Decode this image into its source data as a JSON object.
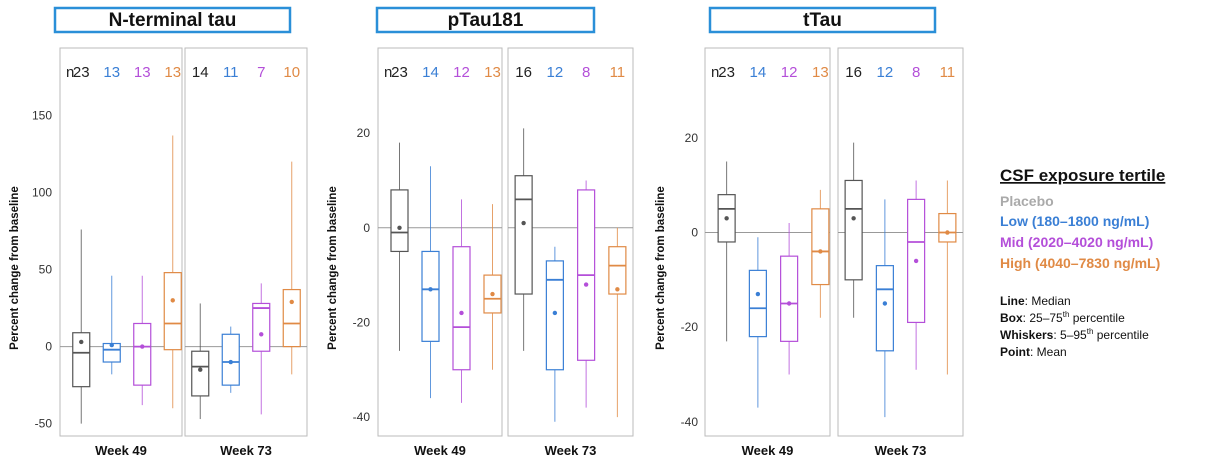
{
  "chart_data": {
    "type": "boxplot",
    "groups": [
      "Placebo",
      "Low",
      "Mid",
      "High"
    ],
    "colors": {
      "Placebo": "#555555",
      "Low": "#3a7fd5",
      "Mid": "#b44fd9",
      "High": "#e08a45"
    },
    "legend": {
      "title": "CSF exposure tertile",
      "items": [
        {
          "label": "Placebo",
          "color": "#aaaaaa"
        },
        {
          "label": "Low (180–1800 ng/mL)",
          "color": "#3a7fd5"
        },
        {
          "label": "Mid (2020–4020 ng/mL)",
          "color": "#b44fd9"
        },
        {
          "label": "High (4040–7830 ng/mL)",
          "color": "#e08a45"
        }
      ],
      "notes": [
        {
          "bold": "Line",
          "text": ": Median"
        },
        {
          "bold": "Box",
          "text": ": 25–75",
          "sup": "th",
          "tail": " percentile"
        },
        {
          "bold": "Whiskers",
          "text": ": 5–95",
          "sup": "th",
          "tail": " percentile"
        },
        {
          "bold": "Point",
          "text": ": Mean"
        }
      ]
    },
    "n_label": "n",
    "panels": [
      {
        "title": "N-terminal tau",
        "ylabel": "Percent change from baseline",
        "ylim": [
          -58,
          160
        ],
        "yticks": [
          -50,
          0,
          50,
          100,
          150
        ],
        "facets": [
          {
            "label": "Week 49",
            "n": [
              23,
              13,
              13,
              13
            ],
            "boxes": [
              {
                "lo": -50,
                "q1": -26,
                "med": -4,
                "q3": 9,
                "hi": 76,
                "mean": 3
              },
              {
                "lo": -18,
                "q1": -10,
                "med": -2,
                "q3": 2,
                "hi": 46,
                "mean": 1
              },
              {
                "lo": -38,
                "q1": -25,
                "med": 0,
                "q3": 15,
                "hi": 46,
                "mean": 0
              },
              {
                "lo": -40,
                "q1": -2,
                "med": 15,
                "q3": 48,
                "hi": 137,
                "mean": 30
              }
            ]
          },
          {
            "label": "Week 73",
            "n": [
              14,
              11,
              7,
              10
            ],
            "boxes": [
              {
                "lo": -47,
                "q1": -32,
                "med": -13,
                "q3": -3,
                "hi": 28,
                "mean": -15
              },
              {
                "lo": -30,
                "q1": -25,
                "med": -10,
                "q3": 8,
                "hi": 13,
                "mean": -10
              },
              {
                "lo": -44,
                "q1": -3,
                "med": 25,
                "q3": 28,
                "hi": 41,
                "mean": 8
              },
              {
                "lo": -18,
                "q1": 0,
                "med": 15,
                "q3": 37,
                "hi": 120,
                "mean": 29
              }
            ]
          }
        ]
      },
      {
        "title": "pTau181",
        "ylabel": "Percent change from baseline",
        "ylim": [
          -44,
          27
        ],
        "yticks": [
          -40,
          -20,
          0,
          20
        ],
        "facets": [
          {
            "label": "Week 49",
            "n": [
              23,
              14,
              12,
              13
            ],
            "boxes": [
              {
                "lo": -26,
                "q1": -5,
                "med": -1,
                "q3": 8,
                "hi": 18,
                "mean": 0
              },
              {
                "lo": -36,
                "q1": -24,
                "med": -13,
                "q3": -5,
                "hi": 13,
                "mean": -13
              },
              {
                "lo": -37,
                "q1": -30,
                "med": -21,
                "q3": -4,
                "hi": 6,
                "mean": -18
              },
              {
                "lo": -30,
                "q1": -18,
                "med": -15,
                "q3": -10,
                "hi": 5,
                "mean": -14
              }
            ]
          },
          {
            "label": "Week 73",
            "n": [
              16,
              12,
              8,
              11
            ],
            "boxes": [
              {
                "lo": -26,
                "q1": -14,
                "med": 6,
                "q3": 11,
                "hi": 21,
                "mean": 1
              },
              {
                "lo": -41,
                "q1": -30,
                "med": -11,
                "q3": -7,
                "hi": -4,
                "mean": -18
              },
              {
                "lo": -38,
                "q1": -28,
                "med": -10,
                "q3": 8,
                "hi": 10,
                "mean": -12
              },
              {
                "lo": -40,
                "q1": -14,
                "med": -8,
                "q3": -4,
                "hi": 0,
                "mean": -13
              }
            ]
          }
        ]
      },
      {
        "title": "tTau",
        "ylabel": "Percent change from baseline",
        "ylim": [
          -43,
          28
        ],
        "yticks": [
          -40,
          -20,
          0,
          20
        ],
        "facets": [
          {
            "label": "Week 49",
            "n": [
              23,
              14,
              12,
              13
            ],
            "boxes": [
              {
                "lo": -23,
                "q1": -2,
                "med": 5,
                "q3": 8,
                "hi": 15,
                "mean": 3
              },
              {
                "lo": -37,
                "q1": -22,
                "med": -16,
                "q3": -8,
                "hi": -1,
                "mean": -13
              },
              {
                "lo": -30,
                "q1": -23,
                "med": -15,
                "q3": -5,
                "hi": 2,
                "mean": -15
              },
              {
                "lo": -18,
                "q1": -11,
                "med": -4,
                "q3": 5,
                "hi": 9,
                "mean": -4
              }
            ]
          },
          {
            "label": "Week 73",
            "n": [
              16,
              12,
              8,
              11
            ],
            "boxes": [
              {
                "lo": -18,
                "q1": -10,
                "med": 5,
                "q3": 11,
                "hi": 19,
                "mean": 3
              },
              {
                "lo": -39,
                "q1": -25,
                "med": -12,
                "q3": -7,
                "hi": 7,
                "mean": -15
              },
              {
                "lo": -29,
                "q1": -19,
                "med": -2,
                "q3": 7,
                "hi": 11,
                "mean": -6
              },
              {
                "lo": -30,
                "q1": -2,
                "med": 0,
                "q3": 4,
                "hi": 11,
                "mean": 0
              }
            ]
          }
        ]
      }
    ]
  }
}
